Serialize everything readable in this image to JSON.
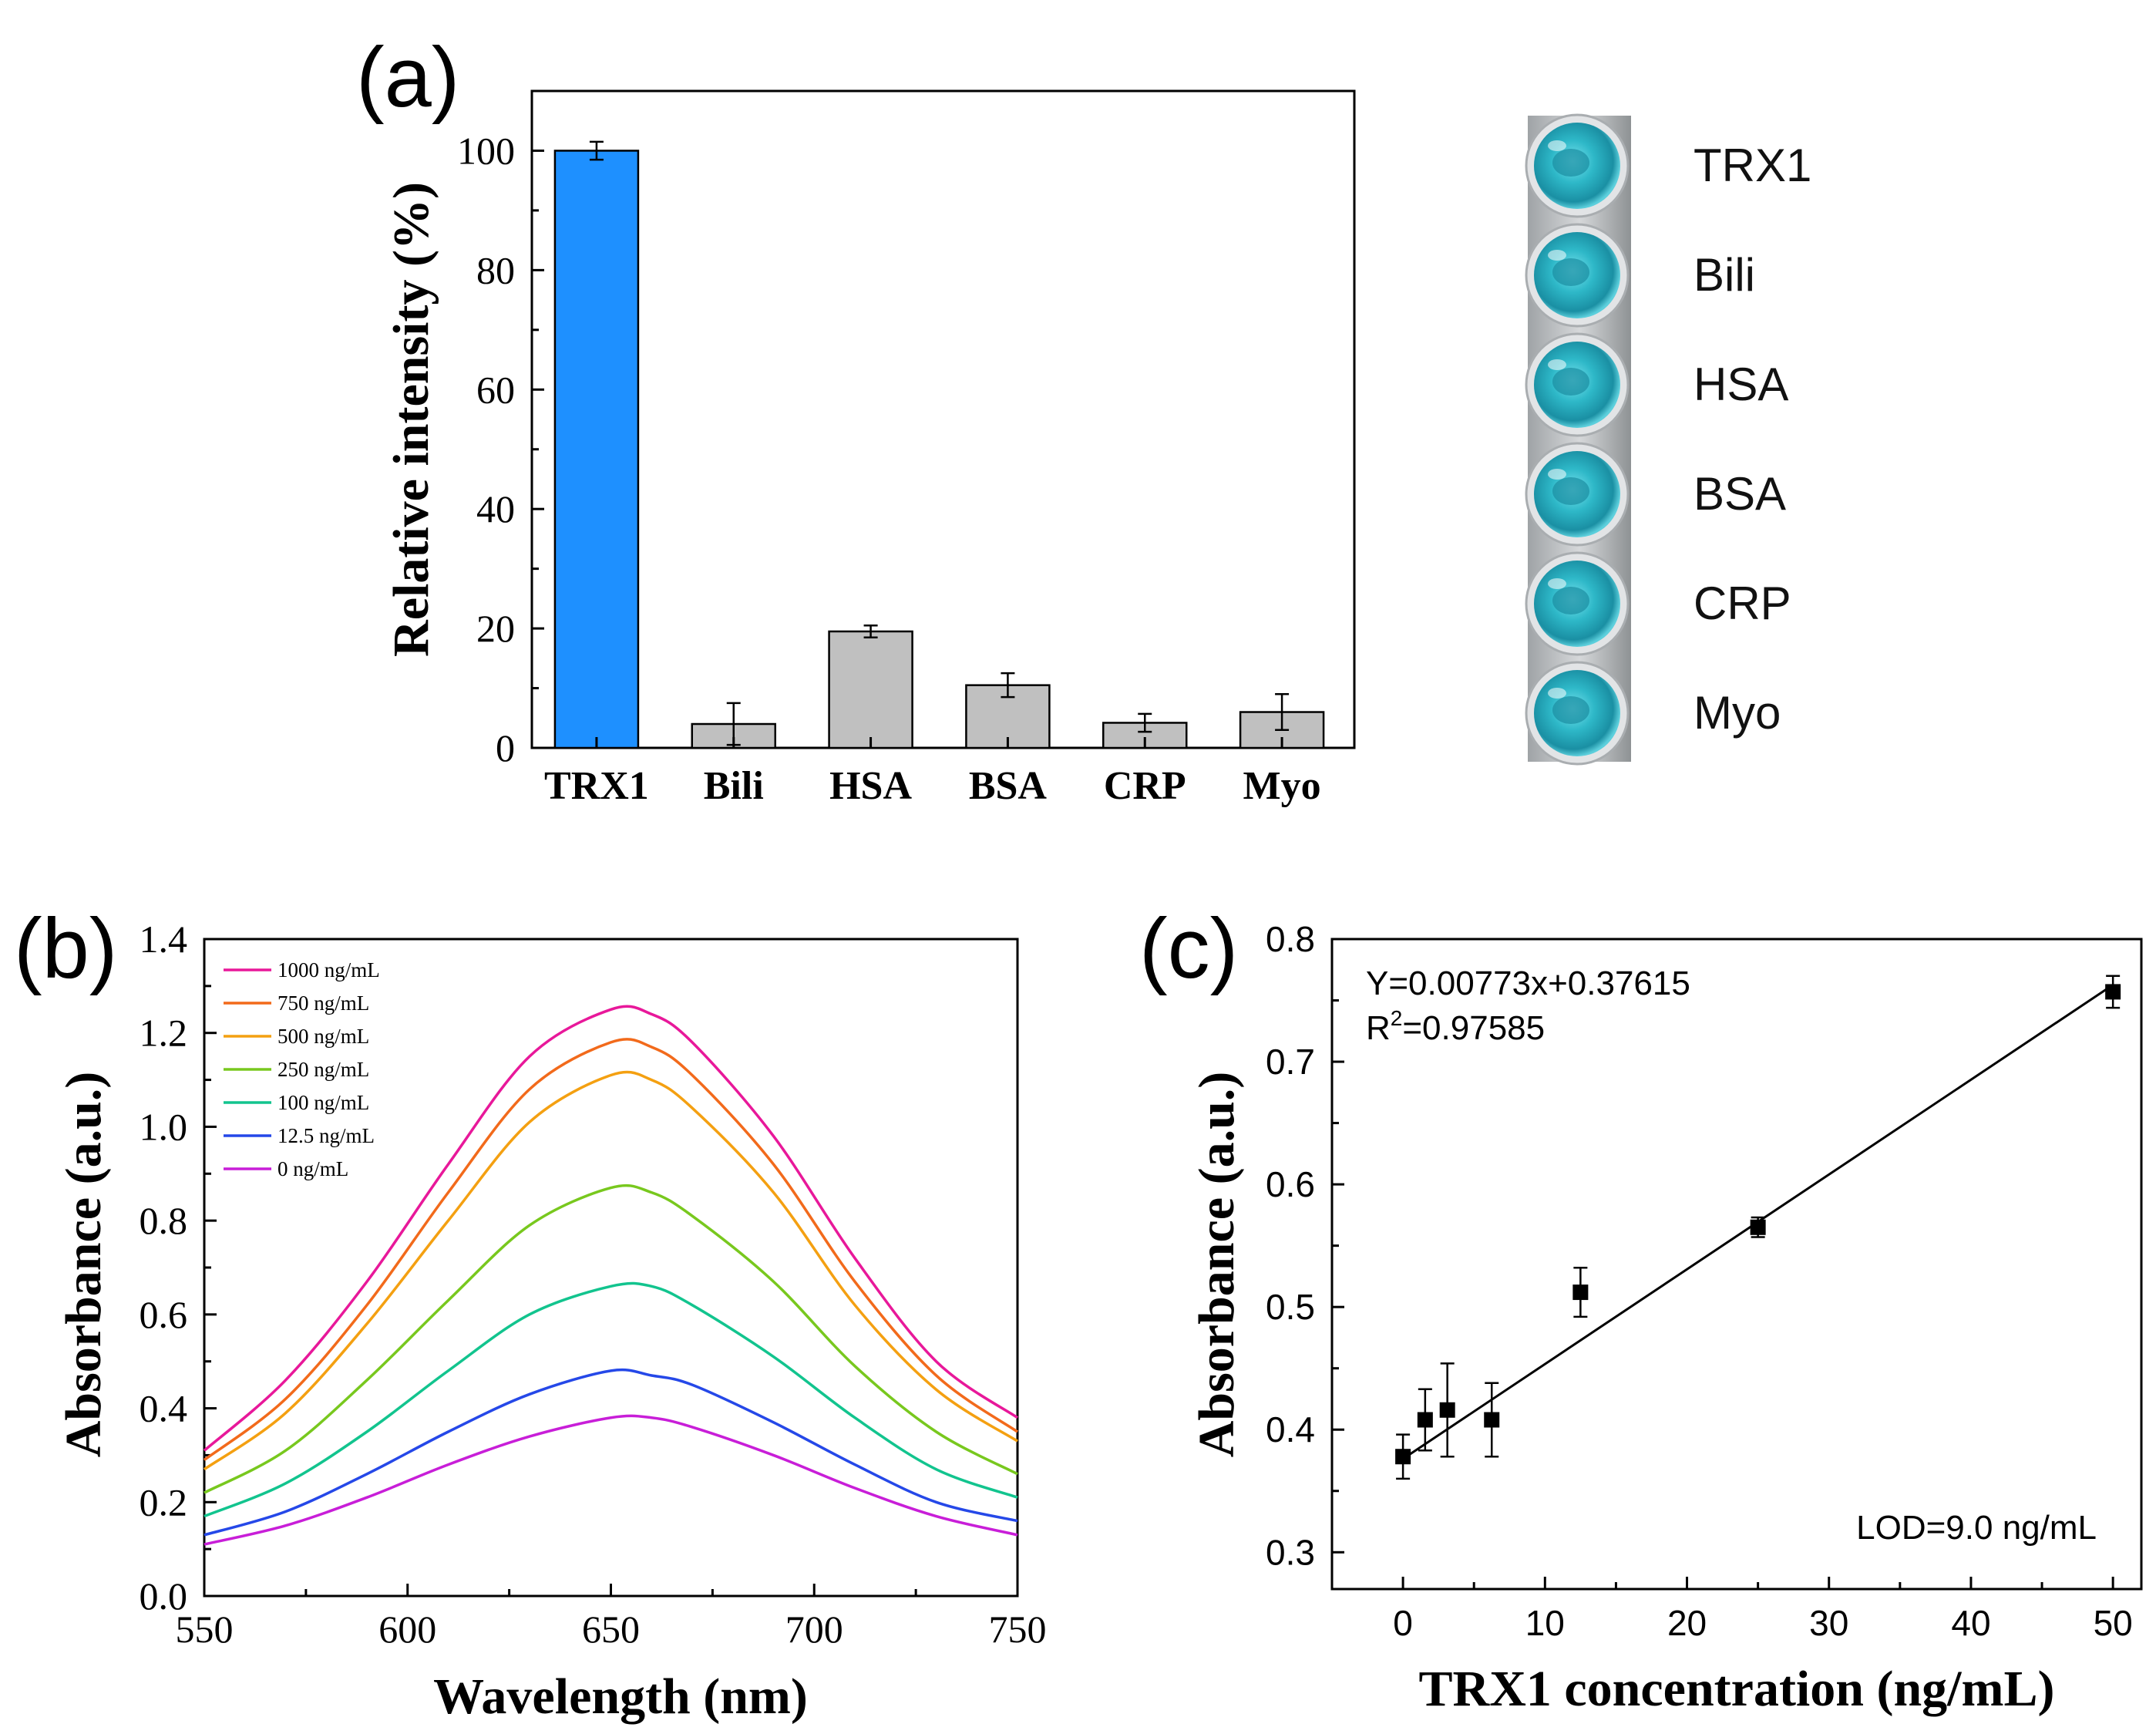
{
  "chart_data": [
    {
      "panel": "(a)",
      "type": "bar",
      "categories": [
        "TRX1",
        "Bili",
        "HSA",
        "BSA",
        "CRP",
        "Myo"
      ],
      "values": [
        100,
        4,
        19.5,
        10.5,
        4.2,
        6
      ],
      "errors": [
        1.5,
        3.5,
        1.0,
        2.0,
        1.5,
        3.0
      ],
      "colors": [
        "#1E90FF",
        "#C0C0C0",
        "#C0C0C0",
        "#C0C0C0",
        "#C0C0C0",
        "#C0C0C0"
      ],
      "ylabel": "Relative intensity (%)",
      "ylim": [
        0,
        110
      ],
      "yticks": [
        0,
        20,
        40,
        60,
        80,
        100
      ],
      "inset": {
        "description_labels": [
          "TRX1",
          "Bili",
          "HSA",
          "BSA",
          "CRP",
          "Myo"
        ],
        "well_color": "#2EB8C8"
      }
    },
    {
      "panel": "(b)",
      "type": "line",
      "xlabel": "Wavelength (nm)",
      "ylabel": "Absorbance (a.u.)",
      "xlim": [
        550,
        750
      ],
      "ylim": [
        0,
        1.4
      ],
      "xticks": [
        550,
        600,
        650,
        700,
        750
      ],
      "yticks": [
        "0.0",
        "0.2",
        "0.4",
        "0.6",
        "0.8",
        "1.0",
        "1.2",
        "1.4"
      ],
      "x": [
        550,
        570,
        590,
        610,
        630,
        650,
        660,
        670,
        690,
        710,
        730,
        750
      ],
      "series": [
        {
          "name": "1000 ng/mL",
          "color": "#E8189A",
          "values": [
            0.31,
            0.46,
            0.67,
            0.92,
            1.15,
            1.25,
            1.24,
            1.18,
            0.98,
            0.72,
            0.5,
            0.38
          ]
        },
        {
          "name": "750 ng/mL",
          "color": "#F26A1B",
          "values": [
            0.29,
            0.42,
            0.62,
            0.86,
            1.08,
            1.18,
            1.17,
            1.11,
            0.92,
            0.67,
            0.47,
            0.35
          ]
        },
        {
          "name": "500 ng/mL",
          "color": "#F4A011",
          "values": [
            0.27,
            0.39,
            0.58,
            0.8,
            1.01,
            1.11,
            1.1,
            1.04,
            0.86,
            0.62,
            0.44,
            0.33
          ]
        },
        {
          "name": "250 ng/mL",
          "color": "#78C81E",
          "values": [
            0.22,
            0.31,
            0.46,
            0.63,
            0.79,
            0.87,
            0.86,
            0.81,
            0.67,
            0.49,
            0.35,
            0.26
          ]
        },
        {
          "name": "100 ng/mL",
          "color": "#12C48E",
          "values": [
            0.17,
            0.24,
            0.35,
            0.48,
            0.6,
            0.66,
            0.66,
            0.62,
            0.51,
            0.38,
            0.27,
            0.21
          ]
        },
        {
          "name": "12.5 ng/mL",
          "color": "#2548E8",
          "values": [
            0.13,
            0.18,
            0.26,
            0.35,
            0.43,
            0.48,
            0.47,
            0.45,
            0.37,
            0.28,
            0.2,
            0.16
          ]
        },
        {
          "name": "0 ng/mL",
          "color": "#C81ED8",
          "values": [
            0.11,
            0.15,
            0.21,
            0.28,
            0.34,
            0.38,
            0.38,
            0.36,
            0.3,
            0.23,
            0.17,
            0.13
          ]
        }
      ]
    },
    {
      "panel": "(c)",
      "type": "scatter",
      "xlabel": "TRX1 concentration (ng/mL)",
      "ylabel": "Absorbance (a.u.)",
      "xlim": [
        -5,
        52
      ],
      "ylim": [
        0.27,
        0.8
      ],
      "xticks": [
        0,
        10,
        20,
        30,
        40,
        50
      ],
      "yticks": [
        "0.3",
        "0.4",
        "0.5",
        "0.6",
        "0.7",
        "0.8"
      ],
      "x": [
        0,
        1.56,
        3.125,
        6.25,
        12.5,
        25,
        50
      ],
      "y": [
        0.378,
        0.408,
        0.416,
        0.408,
        0.512,
        0.565,
        0.757
      ],
      "errors": [
        0.018,
        0.025,
        0.038,
        0.03,
        0.02,
        0.008,
        0.013
      ],
      "fit": {
        "slope": 0.00773,
        "intercept": 0.37615,
        "x_range": [
          0,
          50
        ]
      },
      "equation": "Y=0.00773x+0.37615",
      "r2_prefix": "R",
      "r2_sup": "2",
      "r2_value": "=0.97585",
      "lod": "LOD=9.0 ng/mL"
    }
  ]
}
